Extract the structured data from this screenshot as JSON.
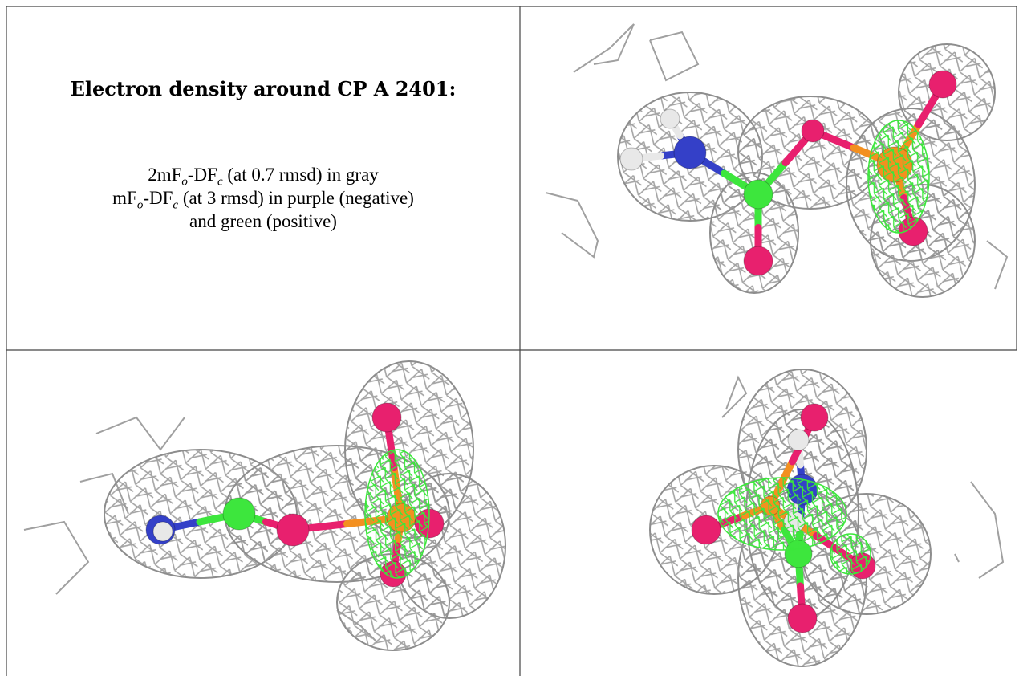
{
  "caption": {
    "title": "Electron density around CP A 2401:",
    "line1": [
      "2mF",
      "o",
      "-DF",
      "c",
      " (at 0.7 rmsd) in gray"
    ],
    "line2": [
      "mF",
      "o",
      "-DF",
      "c",
      " (at 3 rmsd) in purple (negative)"
    ],
    "line3": "and green (positive)"
  }
}
